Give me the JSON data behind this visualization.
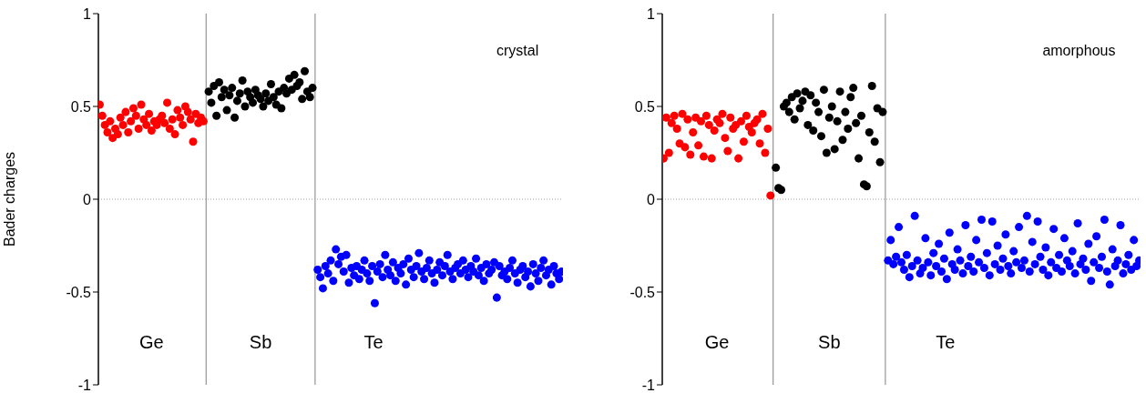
{
  "chart_data": [
    {
      "type": "scatter",
      "ylabel": "Bader charges",
      "ylim": [
        -1,
        1
      ],
      "yticks": [
        -1,
        -0.5,
        0,
        0.5,
        1
      ],
      "tick_labels": "y",
      "marker": "circle",
      "categories": [
        null,
        null,
        null,
        null,
        null,
        null,
        null,
        null,
        null,
        null,
        null,
        null,
        null,
        null,
        null,
        null,
        null,
        null,
        null,
        null,
        null,
        null,
        null,
        null,
        null,
        null,
        null,
        null,
        null,
        null,
        null,
        null,
        null,
        null,
        null,
        null,
        null,
        null,
        null,
        null,
        null,
        null,
        null,
        null,
        null,
        null,
        null,
        null,
        null,
        null,
        null,
        null,
        null,
        null,
        null,
        null,
        null,
        null,
        null,
        null,
        null,
        null,
        null,
        null,
        null,
        null,
        null,
        null,
        null,
        null,
        null,
        null,
        null,
        null,
        null,
        null,
        null,
        null,
        null,
        null,
        null,
        null,
        null,
        null,
        null,
        null,
        null,
        null,
        null,
        null,
        null,
        null,
        null,
        null,
        null,
        null,
        null,
        null,
        null,
        null,
        null,
        null,
        null,
        null,
        null,
        null,
        null,
        null,
        null,
        null,
        null,
        null,
        null,
        null,
        null,
        null,
        null,
        null,
        null,
        null,
        null,
        null,
        null,
        null,
        null,
        null,
        null,
        null,
        null,
        null,
        null,
        null,
        null,
        null,
        null,
        null,
        null,
        null,
        null,
        null,
        null,
        null,
        null,
        null,
        null,
        null,
        null,
        null,
        null,
        null,
        null,
        null,
        null,
        null,
        null,
        null,
        null,
        null,
        null,
        null,
        null,
        null,
        null,
        null,
        null,
        null,
        null,
        null,
        null,
        null,
        null,
        null,
        null,
        null,
        null,
        null,
        null,
        null,
        null
      ],
      "ref_lines": [
        {
          "axis": "y",
          "value": 0,
          "color": "#a0a0a0",
          "line_style": "dotted"
        }
      ],
      "annotations": [
        "Ge",
        "Sb",
        "Te",
        "crystal"
      ],
      "series": [
        {
          "color": "#ff0000",
          "values": [
            0.51,
            0.45,
            0.4,
            0.36,
            0.42,
            0.33,
            0.38,
            0.35,
            0.44,
            0.4,
            0.47,
            0.36,
            0.42,
            0.49,
            0.45,
            0.38,
            0.51,
            0.43,
            0.4,
            0.46,
            0.37,
            0.42,
            0.4,
            0.43,
            0.45,
            0.41,
            0.52,
            0.38,
            0.43,
            0.35,
            0.48,
            0.44,
            0.4,
            0.5,
            0.47,
            0.43,
            0.31,
            0.46,
            0.41,
            0.44,
            0.42,
            null,
            null,
            null,
            null,
            null,
            null,
            null,
            null,
            null,
            null,
            null,
            null,
            null,
            null,
            null,
            null,
            null,
            null,
            null,
            null,
            null,
            null,
            null,
            null,
            null,
            null,
            null,
            null,
            null,
            null,
            null,
            null,
            null,
            null,
            null,
            null,
            null,
            null,
            null,
            null,
            null,
            null,
            null,
            null,
            null,
            null,
            null,
            null,
            null,
            null,
            null,
            null,
            null,
            null,
            null,
            null,
            null,
            null,
            null,
            null,
            null,
            null,
            null,
            null,
            null,
            null,
            null,
            null,
            null,
            null,
            null,
            null,
            null,
            null,
            null,
            null,
            null,
            null,
            null,
            null,
            null,
            null,
            null,
            null,
            null,
            null,
            null,
            null,
            null,
            null,
            null,
            null,
            null,
            null,
            null,
            null,
            null,
            null,
            null,
            null,
            null,
            null,
            null,
            null,
            null,
            null,
            null,
            null,
            null,
            null,
            null,
            null,
            null,
            null,
            null,
            null,
            null,
            null,
            null,
            null,
            null,
            null,
            null,
            null,
            null,
            null,
            null,
            null,
            null,
            null,
            null,
            null,
            null,
            null,
            null,
            null,
            null,
            null
          ]
        },
        {
          "color": "#000000",
          "values": [
            null,
            null,
            null,
            null,
            null,
            null,
            null,
            null,
            null,
            null,
            null,
            null,
            null,
            null,
            null,
            null,
            null,
            null,
            null,
            null,
            null,
            null,
            null,
            null,
            null,
            null,
            null,
            null,
            null,
            null,
            null,
            null,
            null,
            null,
            null,
            null,
            null,
            null,
            null,
            null,
            null,
            null,
            0.58,
            0.52,
            0.61,
            0.45,
            0.63,
            0.55,
            0.59,
            0.48,
            0.56,
            0.6,
            0.44,
            0.53,
            0.57,
            0.64,
            0.5,
            0.58,
            0.55,
            0.52,
            0.59,
            0.56,
            0.54,
            0.5,
            0.57,
            0.53,
            0.62,
            0.55,
            0.51,
            0.58,
            0.49,
            0.6,
            0.57,
            0.65,
            0.59,
            0.67,
            0.61,
            0.63,
            0.54,
            0.69,
            0.58,
            0.55,
            0.6,
            null,
            null,
            null,
            null,
            null,
            null,
            null,
            null,
            null,
            null,
            null,
            null,
            null,
            null,
            null,
            null,
            null,
            null,
            null,
            null,
            null,
            null,
            null,
            null,
            null,
            null,
            null,
            null,
            null,
            null,
            null,
            null,
            null,
            null,
            null,
            null,
            null,
            null,
            null,
            null,
            null,
            null,
            null,
            null,
            null,
            null,
            null,
            null,
            null,
            null,
            null,
            null,
            null,
            null,
            null,
            null,
            null,
            null,
            null,
            null,
            null,
            null,
            null,
            null,
            null,
            null,
            null,
            null,
            null,
            null,
            null,
            null,
            null,
            null,
            null,
            null,
            null,
            null,
            null,
            null,
            null,
            null,
            null,
            null,
            null,
            null,
            null,
            null,
            null,
            null,
            null,
            null,
            null,
            null,
            null,
            null
          ]
        },
        {
          "color": "#0000ff",
          "values": [
            null,
            null,
            null,
            null,
            null,
            null,
            null,
            null,
            null,
            null,
            null,
            null,
            null,
            null,
            null,
            null,
            null,
            null,
            null,
            null,
            null,
            null,
            null,
            null,
            null,
            null,
            null,
            null,
            null,
            null,
            null,
            null,
            null,
            null,
            null,
            null,
            null,
            null,
            null,
            null,
            null,
            null,
            null,
            null,
            null,
            null,
            null,
            null,
            null,
            null,
            null,
            null,
            null,
            null,
            null,
            null,
            null,
            null,
            null,
            null,
            null,
            null,
            null,
            null,
            null,
            null,
            null,
            null,
            null,
            null,
            null,
            null,
            null,
            null,
            null,
            null,
            null,
            null,
            null,
            null,
            null,
            null,
            null,
            null,
            -0.38,
            -0.42,
            -0.48,
            -0.36,
            -0.4,
            -0.33,
            -0.44,
            -0.27,
            -0.35,
            -0.31,
            -0.39,
            -0.3,
            -0.45,
            -0.37,
            -0.41,
            -0.36,
            -0.43,
            -0.38,
            -0.33,
            -0.4,
            -0.44,
            -0.36,
            -0.56,
            -0.39,
            -0.35,
            -0.42,
            -0.3,
            -0.38,
            -0.41,
            -0.34,
            -0.44,
            -0.37,
            -0.4,
            -0.35,
            -0.46,
            -0.32,
            -0.38,
            -0.42,
            -0.36,
            -0.29,
            -0.39,
            -0.43,
            -0.37,
            -0.33,
            -0.4,
            -0.45,
            -0.38,
            -0.34,
            -0.41,
            -0.36,
            -0.3,
            -0.39,
            -0.43,
            -0.37,
            -0.35,
            -0.4,
            -0.33,
            -0.38,
            -0.42,
            -0.36,
            -0.39,
            -0.32,
            -0.41,
            -0.37,
            -0.44,
            -0.35,
            -0.4,
            -0.38,
            -0.34,
            -0.53,
            -0.36,
            -0.41,
            -0.39,
            -0.43,
            -0.37,
            -0.33,
            -0.4,
            -0.45,
            -0.38,
            -0.36,
            -0.42,
            -0.39,
            -0.47,
            -0.35,
            -0.4,
            -0.44,
            -0.37,
            -0.33,
            -0.41,
            -0.38,
            -0.46,
            -0.36,
            -0.4,
            -0.43,
            -0.39
          ]
        }
      ]
    },
    {
      "type": "scatter",
      "ylim": [
        -1,
        1
      ],
      "yticks": [
        -1,
        -0.5,
        0,
        0.5,
        1
      ],
      "tick_labels": "y",
      "marker": "circle",
      "categories": [
        null,
        null,
        null,
        null,
        null,
        null,
        null,
        null,
        null,
        null,
        null,
        null,
        null,
        null,
        null,
        null,
        null,
        null,
        null,
        null,
        null,
        null,
        null,
        null,
        null,
        null,
        null,
        null,
        null,
        null,
        null,
        null,
        null,
        null,
        null,
        null,
        null,
        null,
        null,
        null,
        null,
        null,
        null,
        null,
        null,
        null,
        null,
        null,
        null,
        null,
        null,
        null,
        null,
        null,
        null,
        null,
        null,
        null,
        null,
        null,
        null,
        null,
        null,
        null,
        null,
        null,
        null,
        null,
        null,
        null,
        null,
        null,
        null,
        null,
        null,
        null,
        null,
        null,
        null,
        null,
        null,
        null,
        null,
        null,
        null,
        null,
        null,
        null,
        null,
        null,
        null,
        null,
        null,
        null,
        null,
        null,
        null,
        null,
        null,
        null,
        null,
        null,
        null,
        null,
        null,
        null,
        null,
        null,
        null,
        null,
        null,
        null,
        null,
        null,
        null,
        null,
        null,
        null,
        null,
        null,
        null,
        null,
        null,
        null,
        null,
        null,
        null,
        null,
        null,
        null,
        null,
        null,
        null,
        null,
        null,
        null,
        null,
        null,
        null,
        null,
        null,
        null,
        null,
        null,
        null,
        null,
        null,
        null,
        null,
        null,
        null,
        null,
        null,
        null,
        null,
        null,
        null,
        null,
        null,
        null,
        null,
        null,
        null,
        null,
        null,
        null,
        null,
        null,
        null,
        null,
        null,
        null,
        null,
        null,
        null,
        null,
        null,
        null,
        null
      ],
      "ref_lines": [
        {
          "axis": "y",
          "value": 0,
          "color": "#a0a0a0",
          "line_style": "dotted"
        }
      ],
      "annotations": [
        "Ge",
        "Sb",
        "Te",
        "amorphous"
      ],
      "series": [
        {
          "color": "#ff0000",
          "values": [
            0.22,
            0.44,
            0.25,
            0.41,
            0.45,
            0.38,
            0.3,
            0.46,
            0.28,
            0.43,
            0.24,
            0.36,
            0.44,
            0.29,
            0.42,
            0.23,
            0.45,
            0.4,
            0.22,
            0.37,
            0.43,
            0.41,
            0.46,
            0.33,
            0.26,
            0.44,
            0.38,
            0.4,
            0.22,
            0.42,
            0.31,
            0.45,
            0.39,
            0.36,
            0.41,
            0.43,
            0.3,
            0.46,
            0.25,
            0.38,
            0.02,
            null,
            null,
            null,
            null,
            null,
            null,
            null,
            null,
            null,
            null,
            null,
            null,
            null,
            null,
            null,
            null,
            null,
            null,
            null,
            null,
            null,
            null,
            null,
            null,
            null,
            null,
            null,
            null,
            null,
            null,
            null,
            null,
            null,
            null,
            null,
            null,
            null,
            null,
            null,
            null,
            null,
            null,
            null,
            null,
            null,
            null,
            null,
            null,
            null,
            null,
            null,
            null,
            null,
            null,
            null,
            null,
            null,
            null,
            null,
            null,
            null,
            null,
            null,
            null,
            null,
            null,
            null,
            null,
            null,
            null,
            null,
            null,
            null,
            null,
            null,
            null,
            null,
            null,
            null,
            null,
            null,
            null,
            null,
            null,
            null,
            null,
            null,
            null,
            null,
            null,
            null,
            null,
            null,
            null,
            null,
            null,
            null,
            null,
            null,
            null,
            null,
            null,
            null,
            null,
            null,
            null,
            null,
            null,
            null,
            null,
            null,
            null,
            null,
            null,
            null,
            null,
            null,
            null,
            null,
            null,
            null,
            null,
            null,
            null,
            null,
            null,
            null,
            null,
            null,
            null,
            null,
            null,
            null,
            null,
            null,
            null,
            null,
            null
          ]
        },
        {
          "color": "#000000",
          "values": [
            null,
            null,
            null,
            null,
            null,
            null,
            null,
            null,
            null,
            null,
            null,
            null,
            null,
            null,
            null,
            null,
            null,
            null,
            null,
            null,
            null,
            null,
            null,
            null,
            null,
            null,
            null,
            null,
            null,
            null,
            null,
            null,
            null,
            null,
            null,
            null,
            null,
            null,
            null,
            null,
            null,
            null,
            0.17,
            0.06,
            0.05,
            0.5,
            0.52,
            0.47,
            0.55,
            0.43,
            0.57,
            0.49,
            0.53,
            0.58,
            0.4,
            0.56,
            0.37,
            0.52,
            0.47,
            0.34,
            0.59,
            0.25,
            0.44,
            0.5,
            0.27,
            0.42,
            0.58,
            0.32,
            0.47,
            0.38,
            0.55,
            0.6,
            0.41,
            0.22,
            0.45,
            0.08,
            0.07,
            0.36,
            0.61,
            0.31,
            0.49,
            0.2,
            0.47,
            null,
            null,
            null,
            null,
            null,
            null,
            null,
            null,
            null,
            null,
            null,
            null,
            null,
            null,
            null,
            null,
            null,
            null,
            null,
            null,
            null,
            null,
            null,
            null,
            null,
            null,
            null,
            null,
            null,
            null,
            null,
            null,
            null,
            null,
            null,
            null,
            null,
            null,
            null,
            null,
            null,
            null,
            null,
            null,
            null,
            null,
            null,
            null,
            null,
            null,
            null,
            null,
            null,
            null,
            null,
            null,
            null,
            null,
            null,
            null,
            null,
            null,
            null,
            null,
            null,
            null,
            null,
            null,
            null,
            null,
            null,
            null,
            null,
            null,
            null,
            null,
            null,
            null,
            null,
            null,
            null,
            null,
            null,
            null,
            null,
            null,
            null,
            null,
            null,
            null,
            null,
            null,
            null,
            null,
            null,
            null
          ]
        },
        {
          "color": "#0000ff",
          "values": [
            null,
            null,
            null,
            null,
            null,
            null,
            null,
            null,
            null,
            null,
            null,
            null,
            null,
            null,
            null,
            null,
            null,
            null,
            null,
            null,
            null,
            null,
            null,
            null,
            null,
            null,
            null,
            null,
            null,
            null,
            null,
            null,
            null,
            null,
            null,
            null,
            null,
            null,
            null,
            null,
            null,
            null,
            null,
            null,
            null,
            null,
            null,
            null,
            null,
            null,
            null,
            null,
            null,
            null,
            null,
            null,
            null,
            null,
            null,
            null,
            null,
            null,
            null,
            null,
            null,
            null,
            null,
            null,
            null,
            null,
            null,
            null,
            null,
            null,
            null,
            null,
            null,
            null,
            null,
            null,
            null,
            null,
            null,
            null,
            -0.33,
            -0.22,
            -0.35,
            -0.31,
            -0.15,
            -0.34,
            -0.38,
            -0.3,
            -0.42,
            -0.36,
            -0.09,
            -0.33,
            -0.4,
            -0.37,
            -0.21,
            -0.34,
            -0.41,
            -0.29,
            -0.36,
            -0.24,
            -0.39,
            -0.32,
            -0.43,
            -0.18,
            -0.35,
            -0.38,
            -0.27,
            -0.33,
            -0.4,
            -0.14,
            -0.36,
            -0.31,
            -0.39,
            -0.22,
            -0.34,
            -0.11,
            -0.37,
            -0.29,
            -0.41,
            -0.12,
            -0.35,
            -0.25,
            -0.38,
            -0.32,
            -0.19,
            -0.36,
            -0.4,
            -0.28,
            -0.34,
            -0.15,
            -0.37,
            -0.33,
            -0.09,
            -0.39,
            -0.23,
            -0.35,
            -0.12,
            -0.31,
            -0.38,
            -0.26,
            -0.41,
            -0.34,
            -0.16,
            -0.37,
            -0.3,
            -0.39,
            -0.21,
            -0.33,
            -0.36,
            -0.28,
            -0.4,
            -0.13,
            -0.35,
            -0.32,
            -0.38,
            -0.24,
            -0.44,
            -0.34,
            -0.2,
            -0.37,
            -0.31,
            -0.11,
            -0.39,
            -0.46,
            -0.27,
            -0.36,
            -0.33,
            -0.14,
            -0.4,
            -0.35,
            -0.3,
            -0.38,
            -0.22,
            -0.36,
            -0.33
          ]
        }
      ]
    }
  ]
}
